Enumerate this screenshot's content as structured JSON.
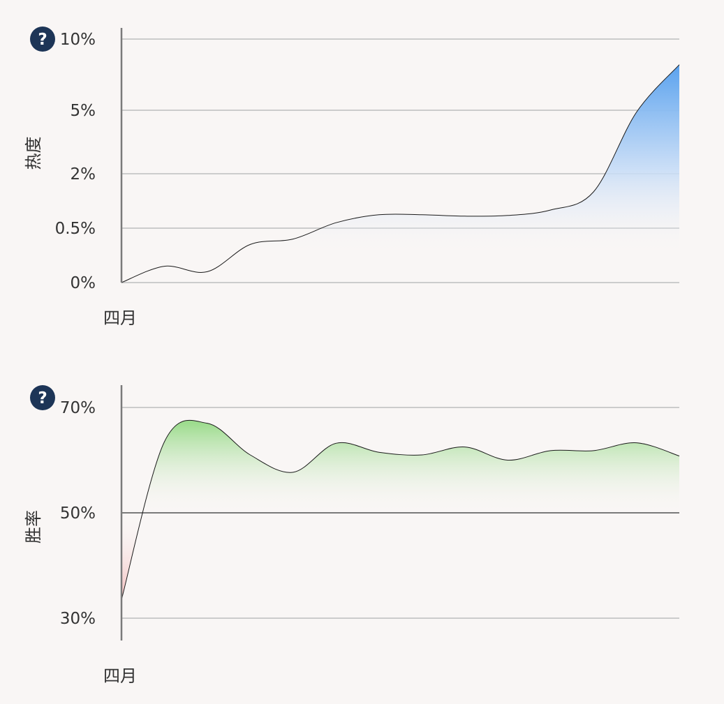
{
  "chart_data": [
    {
      "type": "area",
      "ylabel": "热度",
      "x_tick_labels": [
        "四月"
      ],
      "y_ticks": [
        {
          "value": 0,
          "label": "0%"
        },
        {
          "value": 0.5,
          "label": "0.5%"
        },
        {
          "value": 2,
          "label": "2%"
        },
        {
          "value": 5,
          "label": "5%"
        },
        {
          "value": 10,
          "label": "10%"
        }
      ],
      "y_scale": "nonlinear (ticks at 0%, 0.5%, 2%, 5%, 10%)",
      "ylim": [
        0,
        10
      ],
      "grid": true,
      "series": [
        {
          "x": [
            0,
            1,
            2,
            3,
            4,
            5,
            6,
            7,
            8,
            9,
            10,
            11,
            12,
            13
          ],
          "values": [
            0.0,
            0.15,
            0.1,
            0.35,
            0.4,
            0.65,
            0.87,
            0.87,
            0.83,
            0.85,
            1.0,
            1.5,
            4.9,
            8.2
          ],
          "color": "#5aa2ee"
        }
      ],
      "help_icon": "question-mark-icon",
      "help_text": "?"
    },
    {
      "type": "area",
      "ylabel": "胜率",
      "x_tick_labels": [
        "四月"
      ],
      "y_ticks": [
        {
          "value": 30,
          "label": "30%"
        },
        {
          "value": 50,
          "label": "50%"
        },
        {
          "value": 70,
          "label": "70%"
        }
      ],
      "ylim": [
        26,
        75
      ],
      "baseline": 50,
      "grid": true,
      "series": [
        {
          "x": [
            0,
            1,
            2,
            3,
            4,
            5,
            6,
            7,
            8,
            9,
            10,
            11,
            12,
            13
          ],
          "values": [
            33.5,
            63.5,
            67.0,
            61.0,
            57.7,
            63.2,
            61.5,
            61.0,
            62.5,
            60.0,
            61.8,
            61.8,
            63.3,
            60.8
          ],
          "above_color": "#9ddc8e",
          "below_color": "#f4b9b9"
        }
      ],
      "help_icon": "question-mark-icon",
      "help_text": "?"
    }
  ]
}
